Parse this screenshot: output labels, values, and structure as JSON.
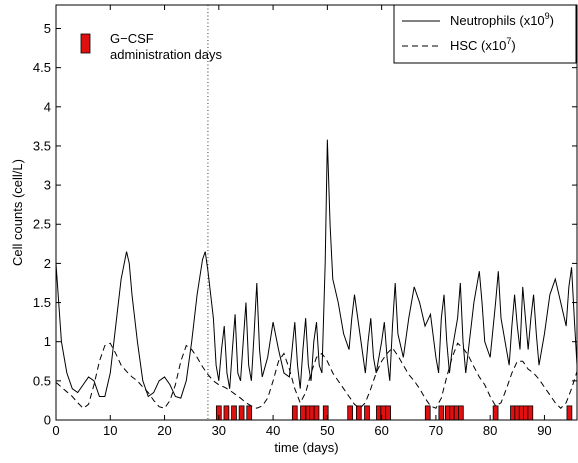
{
  "chart_data": {
    "type": "line",
    "xlabel": "time (days)",
    "ylabel": "Cell counts (cell/L)",
    "xlim": [
      0,
      96
    ],
    "ylim": [
      0,
      5.3
    ],
    "xticks": [
      0,
      10,
      20,
      30,
      40,
      50,
      60,
      70,
      80,
      90
    ],
    "yticks": [
      0,
      0.5,
      1,
      1.5,
      2,
      2.5,
      3,
      3.5,
      4,
      4.5,
      5
    ],
    "xtick_labels": [
      "0",
      "10",
      "20",
      "30",
      "40",
      "50",
      "60",
      "70",
      "80",
      "90"
    ],
    "ytick_labels": [
      "0",
      "0.5",
      "1",
      "1.5",
      "2",
      "2.5",
      "3",
      "3.5",
      "4",
      "4.5",
      "5"
    ],
    "grid": false,
    "legend_position": "top-right",
    "vertical_reference_line_x": 28,
    "series": [
      {
        "name": "Neutrophils (x10",
        "name_superscript": "9",
        "name_suffix": ")",
        "style": "solid",
        "color": "#000000",
        "points": [
          [
            0,
            2.0
          ],
          [
            0.5,
            1.5
          ],
          [
            1,
            1.0
          ],
          [
            2,
            0.6
          ],
          [
            3,
            0.4
          ],
          [
            4,
            0.35
          ],
          [
            5,
            0.45
          ],
          [
            6,
            0.55
          ],
          [
            7,
            0.5
          ],
          [
            8,
            0.3
          ],
          [
            9,
            0.3
          ],
          [
            10,
            0.6
          ],
          [
            11,
            1.2
          ],
          [
            12,
            1.8
          ],
          [
            13,
            2.15
          ],
          [
            13.5,
            2.0
          ],
          [
            14,
            1.6
          ],
          [
            15,
            1.0
          ],
          [
            16,
            0.5
          ],
          [
            17,
            0.3
          ],
          [
            18,
            0.35
          ],
          [
            19,
            0.5
          ],
          [
            20,
            0.55
          ],
          [
            21,
            0.45
          ],
          [
            22,
            0.3
          ],
          [
            23,
            0.28
          ],
          [
            24,
            0.5
          ],
          [
            25,
            1.0
          ],
          [
            26,
            1.6
          ],
          [
            27,
            2.05
          ],
          [
            27.5,
            2.15
          ],
          [
            28,
            1.9
          ],
          [
            29,
            1.3
          ],
          [
            29.5,
            0.7
          ],
          [
            30,
            0.5
          ],
          [
            30.5,
            0.9
          ],
          [
            31,
            1.2
          ],
          [
            31.5,
            0.6
          ],
          [
            32,
            0.4
          ],
          [
            32.5,
            0.9
          ],
          [
            33,
            1.35
          ],
          [
            33.5,
            0.6
          ],
          [
            34,
            0.5
          ],
          [
            34.5,
            1.0
          ],
          [
            35,
            1.5
          ],
          [
            35.5,
            0.7
          ],
          [
            36,
            0.5
          ],
          [
            36.5,
            1.1
          ],
          [
            37,
            1.75
          ],
          [
            37.5,
            0.9
          ],
          [
            38,
            0.55
          ],
          [
            39,
            0.8
          ],
          [
            40,
            1.25
          ],
          [
            41,
            0.9
          ],
          [
            42,
            0.6
          ],
          [
            43,
            0.55
          ],
          [
            43.5,
            0.9
          ],
          [
            44,
            1.25
          ],
          [
            44.5,
            0.7
          ],
          [
            45,
            0.4
          ],
          [
            45.5,
            0.9
          ],
          [
            46,
            1.3
          ],
          [
            46.5,
            0.7
          ],
          [
            47,
            0.5
          ],
          [
            47.5,
            1.0
          ],
          [
            48,
            1.25
          ],
          [
            48.5,
            0.7
          ],
          [
            49,
            0.6
          ],
          [
            49.6,
            2.0
          ],
          [
            50,
            3.58
          ],
          [
            50.5,
            2.5
          ],
          [
            51,
            1.8
          ],
          [
            52,
            1.5
          ],
          [
            53,
            1.1
          ],
          [
            54,
            0.9
          ],
          [
            54.5,
            1.3
          ],
          [
            55,
            1.6
          ],
          [
            56,
            1.1
          ],
          [
            57,
            0.6
          ],
          [
            57.5,
            1.0
          ],
          [
            58,
            1.3
          ],
          [
            58.5,
            0.8
          ],
          [
            59,
            0.6
          ],
          [
            60,
            1.0
          ],
          [
            60.5,
            1.25
          ],
          [
            61,
            0.8
          ],
          [
            61.5,
            0.5
          ],
          [
            62,
            1.2
          ],
          [
            62.5,
            1.75
          ],
          [
            63,
            1.1
          ],
          [
            64,
            0.8
          ],
          [
            65,
            1.3
          ],
          [
            66,
            1.7
          ],
          [
            67,
            1.5
          ],
          [
            68,
            1.2
          ],
          [
            69,
            1.35
          ],
          [
            70,
            0.8
          ],
          [
            70.5,
            0.6
          ],
          [
            71,
            1.3
          ],
          [
            71.5,
            1.6
          ],
          [
            72,
            1.0
          ],
          [
            72.5,
            0.6
          ],
          [
            73,
            0.9
          ],
          [
            74,
            1.3
          ],
          [
            74.5,
            1.75
          ],
          [
            75,
            1.0
          ],
          [
            75.5,
            0.6
          ],
          [
            76,
            0.9
          ],
          [
            77,
            1.5
          ],
          [
            78,
            1.9
          ],
          [
            78.5,
            1.5
          ],
          [
            79,
            1.0
          ],
          [
            80,
            0.8
          ],
          [
            81,
            1.5
          ],
          [
            81.5,
            1.9
          ],
          [
            82,
            1.3
          ],
          [
            83,
            0.9
          ],
          [
            83.5,
            0.7
          ],
          [
            84,
            1.2
          ],
          [
            84.5,
            1.6
          ],
          [
            85,
            1.2
          ],
          [
            85.5,
            0.9
          ],
          [
            86,
            1.7
          ],
          [
            86.5,
            1.3
          ],
          [
            87,
            0.9
          ],
          [
            87.5,
            1.3
          ],
          [
            88,
            1.6
          ],
          [
            88.5,
            1.1
          ],
          [
            89,
            0.7
          ],
          [
            90,
            1.1
          ],
          [
            91,
            1.6
          ],
          [
            92,
            1.8
          ],
          [
            93,
            1.5
          ],
          [
            94,
            1.2
          ],
          [
            94.5,
            1.7
          ],
          [
            95,
            1.95
          ],
          [
            95.5,
            1.3
          ],
          [
            96,
            0.7
          ]
        ]
      },
      {
        "name": "HSC (x10",
        "name_superscript": "7",
        "name_suffix": ")",
        "style": "dashed",
        "color": "#000000",
        "points": [
          [
            0,
            0.48
          ],
          [
            1,
            0.42
          ],
          [
            2,
            0.36
          ],
          [
            3,
            0.3
          ],
          [
            4,
            0.22
          ],
          [
            5,
            0.15
          ],
          [
            6,
            0.2
          ],
          [
            7,
            0.45
          ],
          [
            8,
            0.75
          ],
          [
            9,
            0.95
          ],
          [
            10,
            0.98
          ],
          [
            11,
            0.85
          ],
          [
            12,
            0.7
          ],
          [
            13,
            0.62
          ],
          [
            14,
            0.55
          ],
          [
            15,
            0.5
          ],
          [
            16,
            0.42
          ],
          [
            17,
            0.35
          ],
          [
            18,
            0.25
          ],
          [
            19,
            0.17
          ],
          [
            20,
            0.15
          ],
          [
            21,
            0.25
          ],
          [
            22,
            0.45
          ],
          [
            23,
            0.75
          ],
          [
            24,
            0.95
          ],
          [
            25,
            0.9
          ],
          [
            26,
            0.8
          ],
          [
            27,
            0.68
          ],
          [
            28,
            0.58
          ],
          [
            29,
            0.5
          ],
          [
            30,
            0.45
          ],
          [
            31,
            0.42
          ],
          [
            32,
            0.38
          ],
          [
            33,
            0.33
          ],
          [
            34,
            0.28
          ],
          [
            35,
            0.22
          ],
          [
            36,
            0.18
          ],
          [
            37,
            0.15
          ],
          [
            38,
            0.18
          ],
          [
            39,
            0.28
          ],
          [
            40,
            0.5
          ],
          [
            41,
            0.75
          ],
          [
            42,
            0.85
          ],
          [
            43,
            0.65
          ],
          [
            44,
            0.4
          ],
          [
            45,
            0.22
          ],
          [
            46,
            0.35
          ],
          [
            47,
            0.6
          ],
          [
            48,
            0.8
          ],
          [
            49,
            0.85
          ],
          [
            50,
            0.75
          ],
          [
            51,
            0.6
          ],
          [
            52,
            0.5
          ],
          [
            53,
            0.4
          ],
          [
            54,
            0.3
          ],
          [
            55,
            0.2
          ],
          [
            56,
            0.15
          ],
          [
            57,
            0.22
          ],
          [
            58,
            0.4
          ],
          [
            59,
            0.6
          ],
          [
            60,
            0.75
          ],
          [
            61,
            0.85
          ],
          [
            62,
            0.92
          ],
          [
            63,
            0.82
          ],
          [
            64,
            0.7
          ],
          [
            65,
            0.58
          ],
          [
            66,
            0.5
          ],
          [
            67,
            0.4
          ],
          [
            68,
            0.28
          ],
          [
            69,
            0.18
          ],
          [
            70,
            0.15
          ],
          [
            71,
            0.28
          ],
          [
            72,
            0.55
          ],
          [
            73,
            0.8
          ],
          [
            74,
            0.98
          ],
          [
            75,
            0.92
          ],
          [
            76,
            0.82
          ],
          [
            77,
            0.68
          ],
          [
            78,
            0.55
          ],
          [
            79,
            0.45
          ],
          [
            80,
            0.3
          ],
          [
            81,
            0.18
          ],
          [
            82,
            0.22
          ],
          [
            83,
            0.4
          ],
          [
            84,
            0.6
          ],
          [
            85,
            0.75
          ],
          [
            86,
            0.75
          ],
          [
            87,
            0.65
          ],
          [
            88,
            0.6
          ],
          [
            89,
            0.52
          ],
          [
            90,
            0.42
          ],
          [
            91,
            0.32
          ],
          [
            92,
            0.22
          ],
          [
            93,
            0.15
          ],
          [
            94,
            0.22
          ],
          [
            95,
            0.4
          ],
          [
            96,
            0.62
          ]
        ]
      }
    ],
    "gcsf_days": [
      30,
      31.4,
      32.8,
      34.2,
      35.6,
      44,
      45.5,
      46.5,
      47.2,
      48,
      49.7,
      54.2,
      55.8,
      57.3,
      59.5,
      60.3,
      61.2,
      68.5,
      71,
      72.2,
      73,
      73.8,
      74.6,
      81,
      84.2,
      85,
      85.8,
      86.6,
      87.4,
      94.6
    ],
    "gcsf_bar_height": 0.18,
    "gcsf_bar_width_days": 0.9,
    "gcsf_color": "#e01010",
    "annotation": {
      "line1": "G−CSF",
      "line2": "administration days"
    }
  }
}
